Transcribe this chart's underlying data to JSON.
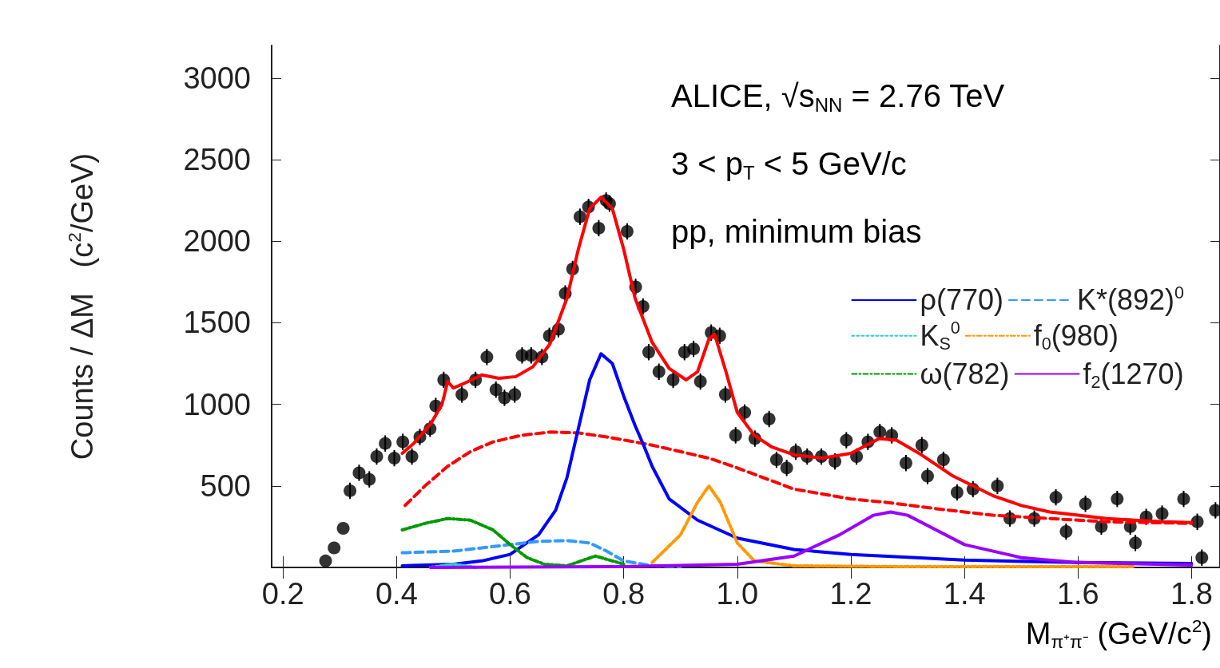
{
  "chart_data": {
    "type": "line",
    "xlabel": "M$_{π⁺π⁻}$ (GeV/c$^{2}$)",
    "ylabel": "Counts / ΔM   (c$^{2}$/GeV)",
    "annotations": [
      "ALICE, √s$_{NN}$ = 2.76 TeV",
      "3 < p$_{T}$ < 5 GeV/c",
      "pp, minimum bias"
    ],
    "xlim": [
      0.18,
      1.85
    ],
    "ylim": [
      0,
      3200
    ],
    "xticks": [
      {
        "value": 0.2,
        "label": "0.2"
      },
      {
        "value": 0.4,
        "label": "0.4"
      },
      {
        "value": 0.6,
        "label": "0.6"
      },
      {
        "value": 0.8,
        "label": "0.8"
      },
      {
        "value": 1.0,
        "label": "1.0"
      },
      {
        "value": 1.2,
        "label": "1.2"
      },
      {
        "value": 1.4,
        "label": "1.4"
      },
      {
        "value": 1.6,
        "label": "1.6"
      },
      {
        "value": 1.8,
        "label": "1.8"
      }
    ],
    "yticks": [
      500,
      1000,
      1500,
      2000,
      2500,
      3000
    ],
    "legend": "right",
    "series": [
      {
        "type": "scatter",
        "marker": "circle",
        "color": "#000000",
        "x": [
          0.275,
          0.29,
          0.306,
          0.318,
          0.334,
          0.352,
          0.365,
          0.38,
          0.396,
          0.411,
          0.427,
          0.441,
          0.459,
          0.469,
          0.483,
          0.515,
          0.539,
          0.559,
          0.575,
          0.59,
          0.608,
          0.621,
          0.637,
          0.656,
          0.669,
          0.685,
          0.697,
          0.71,
          0.723,
          0.738,
          0.756,
          0.769,
          0.775,
          0.806,
          0.821,
          0.834,
          0.844,
          0.862,
          0.887,
          0.907,
          0.923,
          0.935,
          0.954,
          0.969,
          0.979,
          0.997,
          1.013,
          1.031,
          1.056,
          1.069,
          1.087,
          1.103,
          1.123,
          1.148,
          1.172,
          1.192,
          1.21,
          1.23,
          1.251,
          1.272,
          1.297,
          1.325,
          1.335,
          1.363,
          1.387,
          1.415,
          1.458,
          1.48,
          1.523,
          1.561,
          1.579,
          1.613,
          1.641,
          1.669,
          1.692,
          1.701,
          1.72,
          1.748,
          1.786,
          1.81,
          1.818,
          1.842
        ],
        "values": [
          40,
          120,
          240,
          470,
          580,
          540,
          680,
          760,
          670,
          770,
          680,
          800,
          850,
          990,
          1150,
          1060,
          1150,
          1290,
          1090,
          1040,
          1060,
          1300,
          1300,
          1290,
          1420,
          1460,
          1680,
          1830,
          2150,
          2210,
          2080,
          2250,
          2230,
          2060,
          1720,
          1600,
          1320,
          1200,
          1150,
          1320,
          1340,
          1140,
          1440,
          1420,
          1060,
          810,
          950,
          790,
          910,
          660,
          610,
          710,
          680,
          680,
          650,
          780,
          680,
          770,
          830,
          810,
          640,
          750,
          560,
          660,
          460,
          480,
          500,
          300,
          300,
          430,
          220,
          390,
          250,
          420,
          250,
          150,
          310,
          330,
          420,
          280,
          60,
          350
        ],
        "errors": [
          null,
          null,
          null,
          50,
          50,
          50,
          50,
          50,
          50,
          50,
          50,
          50,
          50,
          50,
          50,
          50,
          50,
          50,
          50,
          50,
          50,
          50,
          50,
          50,
          50,
          50,
          50,
          50,
          50,
          50,
          50,
          50,
          50,
          50,
          50,
          50,
          50,
          50,
          50,
          50,
          50,
          50,
          50,
          50,
          50,
          50,
          50,
          50,
          50,
          50,
          50,
          50,
          50,
          50,
          50,
          50,
          50,
          50,
          50,
          50,
          50,
          50,
          50,
          50,
          50,
          50,
          50,
          50,
          50,
          50,
          50,
          50,
          50,
          50,
          50,
          50,
          50,
          50,
          50,
          50,
          50,
          50
        ]
      },
      {
        "marker": "none",
        "line_style": "solid",
        "color": "#ff0000",
        "x": [
          0.41,
          0.43,
          0.46,
          0.48,
          0.49,
          0.5,
          0.52,
          0.55,
          0.58,
          0.61,
          0.64,
          0.67,
          0.7,
          0.72,
          0.74,
          0.76,
          0.78,
          0.8,
          0.82,
          0.85,
          0.88,
          0.91,
          0.93,
          0.95,
          0.96,
          0.98,
          1.0,
          1.03,
          1.06,
          1.1,
          1.15,
          1.2,
          1.25,
          1.28,
          1.32,
          1.38,
          1.45,
          1.5,
          1.55,
          1.6,
          1.65,
          1.7,
          1.75,
          1.8
        ],
        "values": [
          700,
          760,
          880,
          1000,
          1140,
          1100,
          1130,
          1180,
          1160,
          1170,
          1230,
          1370,
          1650,
          1950,
          2200,
          2270,
          2200,
          1950,
          1650,
          1380,
          1220,
          1150,
          1200,
          1400,
          1430,
          1200,
          950,
          810,
          740,
          690,
          670,
          700,
          790,
          780,
          700,
          560,
          440,
          380,
          340,
          320,
          300,
          290,
          280,
          275
        ]
      },
      {
        "marker": "none",
        "line_style": "dashed",
        "color": "#ff0000",
        "x": [
          0.415,
          0.45,
          0.49,
          0.53,
          0.57,
          0.62,
          0.67,
          0.72,
          0.77,
          0.85,
          0.95,
          1.0,
          1.1,
          1.2,
          1.26,
          1.35,
          1.45,
          1.55,
          1.65,
          1.8
        ],
        "values": [
          380,
          500,
          620,
          710,
          770,
          810,
          830,
          825,
          800,
          750,
          670,
          610,
          480,
          420,
          400,
          360,
          320,
          300,
          280,
          270
        ]
      },
      {
        "name": "ρ(770)",
        "marker": "none",
        "line_style": "solid",
        "color": "#0000ff",
        "x": [
          0.41,
          0.5,
          0.55,
          0.6,
          0.65,
          0.68,
          0.7,
          0.72,
          0.74,
          0.76,
          0.78,
          0.8,
          0.82,
          0.835,
          0.85,
          0.88,
          0.93,
          1.0,
          1.1,
          1.2,
          1.4,
          1.6,
          1.8
        ],
        "values": [
          10,
          20,
          40,
          80,
          200,
          350,
          550,
          850,
          1150,
          1310,
          1250,
          1050,
          870,
          750,
          620,
          420,
          290,
          180,
          110,
          80,
          45,
          30,
          25
        ]
      },
      {
        "name": "K*(892)$^{0}$",
        "marker": "none",
        "line_style": "dashed",
        "color": "#3399ff",
        "x": [
          0.41,
          0.5,
          0.55,
          0.6,
          0.65,
          0.7,
          0.74,
          0.77,
          0.8,
          0.85,
          0.9
        ],
        "values": [
          90,
          100,
          120,
          140,
          160,
          165,
          150,
          100,
          40,
          10,
          5
        ]
      },
      {
        "name": "K$_{S}$$^{0}$",
        "marker": "none",
        "line_style": "dotted",
        "color": "#33cccc",
        "x": [
          0.46,
          0.5,
          0.54
        ],
        "values": [
          0,
          20,
          0
        ]
      },
      {
        "name": "f$_{0}$(980)",
        "marker": "none",
        "line_style": "dashdot",
        "color": "#ff9900",
        "x": [
          0.85,
          0.9,
          0.93,
          0.95,
          0.97,
          1.0,
          1.03,
          1.1,
          1.3,
          1.7
        ],
        "values": [
          30,
          200,
          400,
          500,
          400,
          150,
          40,
          10,
          5,
          5
        ]
      },
      {
        "name": "ω(782)",
        "marker": "none",
        "line_style": "dashdot",
        "color": "#009900",
        "x": [
          0.41,
          0.45,
          0.49,
          0.53,
          0.57,
          0.6,
          0.63,
          0.66,
          0.7,
          0.75,
          0.78,
          0.8
        ],
        "values": [
          230,
          270,
          300,
          290,
          230,
          140,
          60,
          20,
          10,
          70,
          40,
          20
        ]
      },
      {
        "name": "f$_{2}$(1270)",
        "marker": "none",
        "line_style": "solid",
        "color": "#9900ff",
        "x": [
          0.46,
          0.8,
          1.0,
          1.1,
          1.18,
          1.24,
          1.27,
          1.3,
          1.35,
          1.4,
          1.5,
          1.6,
          1.8
        ],
        "values": [
          0,
          5,
          20,
          70,
          200,
          320,
          340,
          320,
          230,
          140,
          60,
          30,
          15
        ]
      }
    ]
  }
}
